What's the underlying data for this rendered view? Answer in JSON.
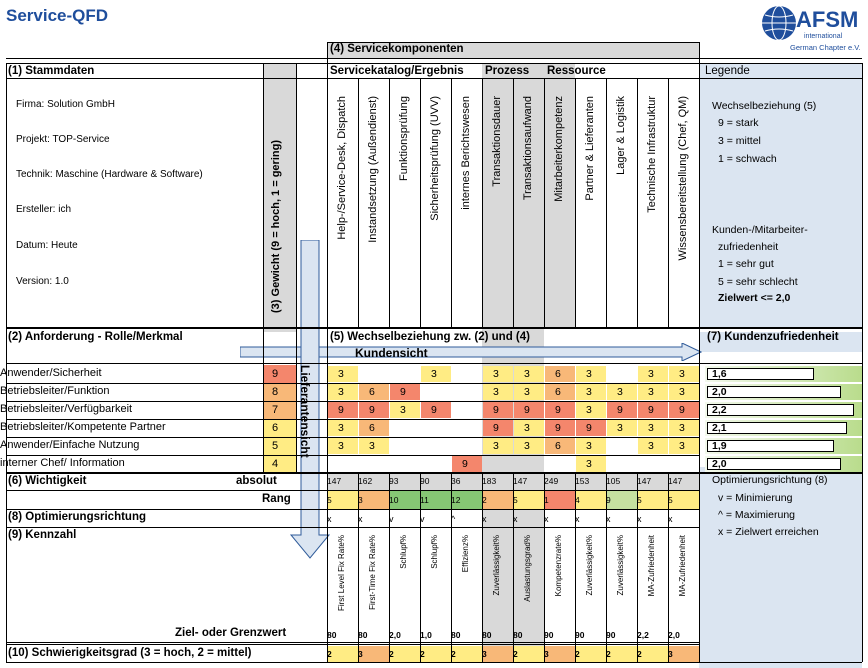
{
  "title": "Service-QFD",
  "logo": {
    "text": "AFSM",
    "sub": "international",
    "chapter": "German Chapter e.V.",
    "icon": "globe-icon"
  },
  "section4": {
    "label": "(4) Servicekomponenten",
    "groups": [
      "Servicekatalog/Ergebnis",
      "Prozess",
      "Ressource"
    ]
  },
  "stammdaten": {
    "label": "(1) Stammdaten",
    "lines": [
      "Firma: Solution GmbH",
      "Projekt: TOP-Service",
      "Technik: Maschine (Hardware & Software)",
      "Ersteller: ich",
      "Datum: Heute",
      "Version: 1.0"
    ]
  },
  "gewicht_label": "(3) Gewicht (9 = hoch, 1 = gering)",
  "components": [
    "Help-/Service-Desk, Dispatch",
    "Instandsetzung (Außendienst)",
    "Funktionsprüfung",
    "Sicherheitsprüfung (UVV)",
    "internes Berichtswesen",
    "Transaktionsdauer",
    "Transaktionsaufwand",
    "Mitarbeiterkompetenz",
    "Partner & Lieferanten",
    "Lager & Logistik",
    "Technische Infrastruktur",
    "Wissensbereitstellung (Chef, QM)"
  ],
  "legende": {
    "label": "Legende",
    "wb_title": "Wechselbeziehung (5)",
    "wb_items": [
      "9 = stark",
      "3 = mittel",
      "1 = schwach"
    ],
    "kz_title": "Kunden-/Mitarbeiter-",
    "kz_title2": "zufriedenheit",
    "kz_items": [
      "1 = sehr gut",
      "5 = sehr schlecht"
    ],
    "kz_target": "Zielwert <= 2,0"
  },
  "anforderung_label": "(2) Anforderung - Rolle/Merkmal",
  "wechsel_label": "(5) Wechselbeziehung zw. (2) und (4)",
  "kundensicht": "Kundensicht",
  "lieferantensicht": "Lieferantensicht",
  "kundenzufriedenheit_label": "(7) Kundenzufriedenheit",
  "rows": [
    {
      "label": "Anwender/Sicherheit",
      "weight": "9",
      "values": [
        "3",
        "",
        "",
        "3",
        "",
        "3",
        "3",
        "6",
        "3",
        "",
        "3",
        "3"
      ],
      "satisfaction": "1,6",
      "sat": 1.6
    },
    {
      "label": "Betriebsleiter/Funktion",
      "weight": "8",
      "values": [
        "3",
        "6",
        "9",
        "",
        "",
        "3",
        "3",
        "6",
        "3",
        "3",
        "3",
        "3"
      ],
      "satisfaction": "2,0",
      "sat": 2.0
    },
    {
      "label": "Betriebsleiter/Verfügbarkeit",
      "weight": "7",
      "values": [
        "9",
        "9",
        "3",
        "9",
        "",
        "9",
        "9",
        "9",
        "3",
        "9",
        "9",
        "9"
      ],
      "satisfaction": "2,2",
      "sat": 2.2
    },
    {
      "label": "Betriebsleiter/Kompetente Partner",
      "weight": "6",
      "values": [
        "3",
        "6",
        "",
        "",
        "",
        "9",
        "3",
        "9",
        "9",
        "3",
        "3",
        "3"
      ],
      "satisfaction": "2,1",
      "sat": 2.1
    },
    {
      "label": "Anwender/Einfache Nutzung",
      "weight": "5",
      "values": [
        "3",
        "3",
        "",
        "",
        "",
        "3",
        "3",
        "6",
        "3",
        "",
        "3",
        "3"
      ],
      "satisfaction": "1,9",
      "sat": 1.9
    },
    {
      "label": "interner Chef/ Information",
      "weight": "4",
      "values": [
        "",
        "",
        "",
        "",
        "9",
        "",
        "",
        "",
        "3",
        "",
        "",
        ""
      ],
      "satisfaction": "2,0",
      "sat": 2.0
    }
  ],
  "wichtigkeit": {
    "label": "(6) Wichtigkeit",
    "absolut_label": "absolut",
    "rang_label": "Rang",
    "absolut": [
      "147",
      "162",
      "93",
      "90",
      "36",
      "183",
      "147",
      "249",
      "153",
      "105",
      "147",
      "147"
    ],
    "rang": [
      "5",
      "3",
      "10",
      "11",
      "12",
      "2",
      "5",
      "1",
      "4",
      "9",
      "5",
      "5"
    ]
  },
  "optimierung": {
    "label": "(8) Optimierungsrichtung",
    "values": [
      "x",
      "x",
      "v",
      "v",
      "^",
      "x",
      "x",
      "x",
      "x",
      "x",
      "x",
      "x"
    ]
  },
  "legende_opt": {
    "title": "Optimierungsrichtung (8)",
    "items": [
      "v = Minimierung",
      "^ = Maximierung",
      "x = Zielwert erreichen"
    ]
  },
  "kennzahl": {
    "label": "(9) Kennzahl",
    "names": [
      "First Level Fix Rate%",
      "First-Time Fix Rate%",
      "Schlupf%",
      "Schlupf%",
      "Effizienz%",
      "Zuverlässigkeit%",
      "Auslastungsgrad%",
      "Kompetenzrate%",
      "Zuverlässigkeit%",
      "Zuverlässigkeit%",
      "MA-Zufriedenheit",
      "MA-Zufriedenheit"
    ],
    "ziel_label": "Ziel- oder Grenzwert",
    "ziel": [
      "80",
      "80",
      "2,0",
      "1,0",
      "80",
      "80",
      "80",
      "90",
      "90",
      "90",
      "2,2",
      "2,0"
    ]
  },
  "schwierigkeit": {
    "label": "(10) Schwierigkeitsgrad (3 = hoch, 2 = mittel)",
    "values": [
      "2",
      "3",
      "2",
      "2",
      "2",
      "3",
      "2",
      "3",
      "2",
      "2",
      "2",
      "3"
    ]
  },
  "colors": {
    "red": "#f4866c",
    "orange": "#f8b878",
    "yellow": "#ffec84",
    "lgreen": "#c6e0a0",
    "green": "#86c774",
    "accent": "#1f4e9c"
  }
}
